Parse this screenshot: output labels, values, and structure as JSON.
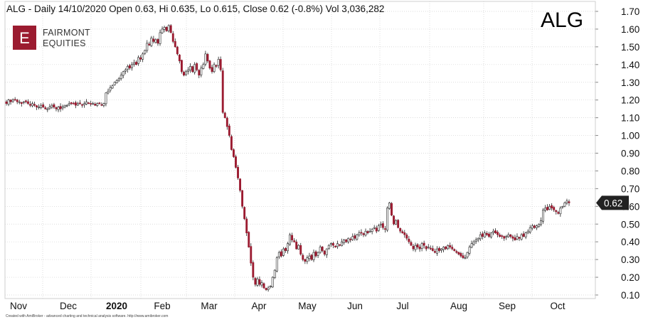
{
  "header": {
    "title": "ALG - Daily 14/10/2020 Open 0.63, Hi 0.635, Lo 0.615, Close 0.62 (-0.8%) Vol 3,036,282",
    "ticker": "ALG"
  },
  "logo": {
    "letter": "E",
    "line1": "FAIRMONT",
    "line2": "EQUITIES",
    "color": "#9b1b30"
  },
  "footer": {
    "credit": "Created with AmiBroker - advanced charting and technical analysis software. http://www.amibroker.com"
  },
  "colors": {
    "up": "#ffffff",
    "down": "#9b1b30",
    "outline": "#222222",
    "grid": "#d0d0d0",
    "price_tag": "#222222"
  },
  "chart_data": {
    "type": "candlestick",
    "ylim": [
      0.1,
      1.7
    ],
    "yticks": [
      "1.70",
      "1.60",
      "1.50",
      "1.40",
      "1.30",
      "1.20",
      "1.10",
      "1.00",
      "0.90",
      "0.80",
      "0.70",
      "0.60",
      "0.50",
      "0.40",
      "0.30",
      "0.20",
      "0.10"
    ],
    "x_months": [
      {
        "label": "Nov",
        "bold": false
      },
      {
        "label": "Dec",
        "bold": false
      },
      {
        "label": "2020",
        "bold": true
      },
      {
        "label": "Feb",
        "bold": false
      },
      {
        "label": "Mar",
        "bold": false
      },
      {
        "label": "Apr",
        "bold": false
      },
      {
        "label": "May",
        "bold": false
      },
      {
        "label": "Jun",
        "bold": false
      },
      {
        "label": "Jul",
        "bold": false
      },
      {
        "label": "Aug",
        "bold": false
      },
      {
        "label": "Sep",
        "bold": false
      },
      {
        "label": "Oct",
        "bold": false
      }
    ],
    "last_price_label": "0.62",
    "last_close": 0.62,
    "series": [
      {
        "name": "ALG",
        "closes": [
          1.18,
          1.2,
          1.19,
          1.2,
          1.2,
          1.19,
          1.19,
          1.18,
          1.19,
          1.19,
          1.18,
          1.17,
          1.18,
          1.17,
          1.16,
          1.16,
          1.17,
          1.16,
          1.15,
          1.15,
          1.16,
          1.17,
          1.16,
          1.15,
          1.16,
          1.15,
          1.16,
          1.17,
          1.17,
          1.18,
          1.18,
          1.18,
          1.17,
          1.18,
          1.18,
          1.17,
          1.18,
          1.19,
          1.18,
          1.18,
          1.18,
          1.17,
          1.18,
          1.18,
          1.17,
          1.18,
          1.24,
          1.25,
          1.27,
          1.28,
          1.3,
          1.31,
          1.32,
          1.34,
          1.36,
          1.37,
          1.39,
          1.38,
          1.4,
          1.41,
          1.4,
          1.44,
          1.43,
          1.46,
          1.48,
          1.52,
          1.51,
          1.55,
          1.53,
          1.54,
          1.52,
          1.58,
          1.6,
          1.61,
          1.59,
          1.62,
          1.58,
          1.53,
          1.5,
          1.46,
          1.42,
          1.36,
          1.34,
          1.36,
          1.37,
          1.39,
          1.36,
          1.4,
          1.37,
          1.34,
          1.38,
          1.4,
          1.46,
          1.42,
          1.38,
          1.36,
          1.4,
          1.39,
          1.43,
          1.37,
          1.13,
          1.1,
          1.05,
          1.0,
          0.92,
          0.88,
          0.82,
          0.76,
          0.69,
          0.6,
          0.53,
          0.45,
          0.37,
          0.28,
          0.2,
          0.16,
          0.19,
          0.16,
          0.17,
          0.14,
          0.13,
          0.14,
          0.15,
          0.2,
          0.24,
          0.31,
          0.34,
          0.32,
          0.36,
          0.35,
          0.39,
          0.44,
          0.41,
          0.4,
          0.36,
          0.38,
          0.33,
          0.3,
          0.29,
          0.31,
          0.32,
          0.3,
          0.34,
          0.32,
          0.34,
          0.37,
          0.35,
          0.33,
          0.36,
          0.38,
          0.39,
          0.38,
          0.37,
          0.39,
          0.38,
          0.4,
          0.41,
          0.4,
          0.42,
          0.41,
          0.43,
          0.42,
          0.44,
          0.45,
          0.45,
          0.44,
          0.46,
          0.45,
          0.46,
          0.47,
          0.48,
          0.46,
          0.49,
          0.5,
          0.48,
          0.47,
          0.59,
          0.62,
          0.55,
          0.5,
          0.52,
          0.48,
          0.46,
          0.45,
          0.44,
          0.42,
          0.4,
          0.38,
          0.36,
          0.38,
          0.37,
          0.36,
          0.39,
          0.38,
          0.36,
          0.37,
          0.36,
          0.35,
          0.34,
          0.36,
          0.35,
          0.36,
          0.37,
          0.36,
          0.38,
          0.37,
          0.36,
          0.35,
          0.34,
          0.33,
          0.32,
          0.31,
          0.31,
          0.34,
          0.37,
          0.39,
          0.4,
          0.41,
          0.42,
          0.44,
          0.43,
          0.45,
          0.44,
          0.43,
          0.45,
          0.46,
          0.45,
          0.44,
          0.43,
          0.43,
          0.42,
          0.43,
          0.44,
          0.43,
          0.42,
          0.41,
          0.43,
          0.42,
          0.44,
          0.43,
          0.45,
          0.46,
          0.48,
          0.49,
          0.48,
          0.49,
          0.5,
          0.52,
          0.58,
          0.59,
          0.58,
          0.6,
          0.59,
          0.58,
          0.57,
          0.56,
          0.59,
          0.6,
          0.62,
          0.63,
          0.62
        ]
      }
    ]
  }
}
